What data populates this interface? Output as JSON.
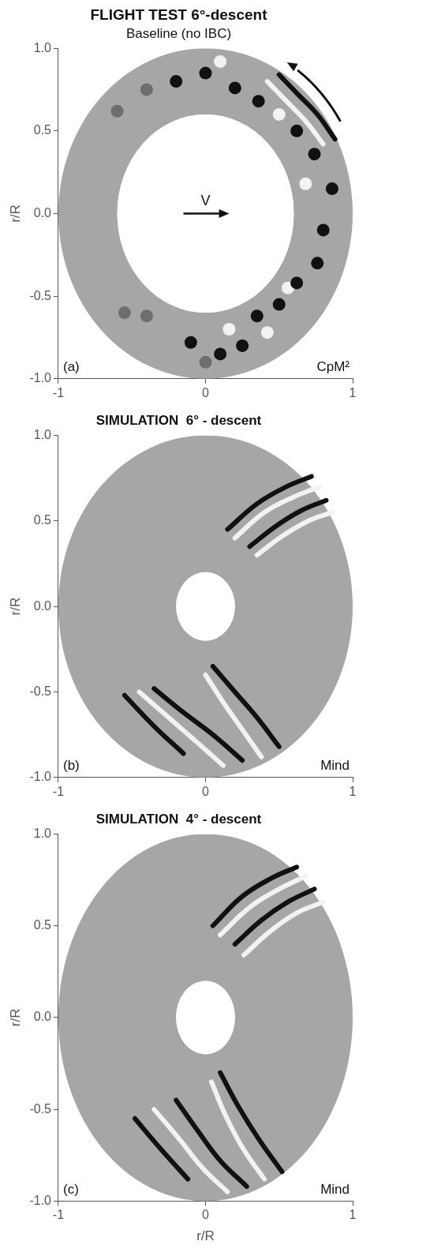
{
  "chart_data": [
    {
      "type": "scatter",
      "title": "FLIGHT TEST 6°-descent",
      "subtitle": "Baseline (no IBC)",
      "panel_label": "(a)",
      "quantity": "CpM²",
      "annotations": [
        "V"
      ],
      "y_label": "r/R",
      "xlim": [
        -1,
        1
      ],
      "ylim": [
        -1,
        1
      ],
      "xticks": [
        -1,
        0,
        1
      ],
      "yticks": [
        {
          "value": -1,
          "label": "-1.0"
        },
        {
          "value": -0.5,
          "label": "-0.5"
        },
        {
          "value": 0,
          "label": "0.0"
        },
        {
          "value": 0.5,
          "label": "0.5"
        },
        {
          "value": 1,
          "label": "1.0"
        }
      ],
      "grid": false,
      "disk": {
        "inner_radius": 0.6,
        "outer_radius": 1.0,
        "color": "#a6a6a6"
      },
      "series": [
        {
          "type": "scatter",
          "marker": "circle",
          "color": "#111111",
          "values": [
            [
              0.1,
              -0.85
            ],
            [
              0.25,
              -0.8
            ],
            [
              0.35,
              -0.62
            ],
            [
              0.5,
              -0.55
            ],
            [
              -0.1,
              -0.78
            ],
            [
              0.62,
              -0.42
            ],
            [
              0.76,
              -0.3
            ],
            [
              0.0,
              0.85
            ],
            [
              -0.2,
              0.8
            ],
            [
              0.2,
              0.76
            ],
            [
              0.36,
              0.68
            ],
            [
              0.62,
              0.5
            ],
            [
              0.74,
              0.36
            ],
            [
              0.86,
              0.15
            ],
            [
              0.8,
              -0.1
            ]
          ]
        },
        {
          "type": "scatter",
          "marker": "circle",
          "color": "#6e6e6e",
          "values": [
            [
              -0.4,
              -0.62
            ],
            [
              -0.55,
              -0.6
            ],
            [
              -0.4,
              0.75
            ],
            [
              -0.6,
              0.62
            ],
            [
              0.0,
              -0.9
            ]
          ]
        },
        {
          "type": "scatter",
          "marker": "circle",
          "color": "#f2f2f2",
          "values": [
            [
              0.16,
              -0.7
            ],
            [
              0.42,
              -0.72
            ],
            [
              0.56,
              -0.45
            ],
            [
              0.1,
              0.92
            ],
            [
              0.68,
              0.18
            ],
            [
              0.5,
              0.6
            ]
          ]
        },
        {
          "type": "line",
          "color": "#f2f2f2",
          "values": [
            [
              0.42,
              0.8
            ],
            [
              0.55,
              0.68
            ],
            [
              0.68,
              0.56
            ],
            [
              0.8,
              0.42
            ]
          ]
        },
        {
          "type": "line",
          "color": "#111111",
          "values": [
            [
              0.5,
              0.84
            ],
            [
              0.63,
              0.72
            ],
            [
              0.76,
              0.6
            ],
            [
              0.88,
              0.45
            ]
          ]
        }
      ]
    },
    {
      "type": "scatter",
      "title": "SIMULATION  6° - descent",
      "panel_label": "(b)",
      "quantity": "Mind",
      "y_label": "r/R",
      "xlim": [
        -1,
        1
      ],
      "ylim": [
        -1,
        1
      ],
      "xticks": [
        -1,
        0,
        1
      ],
      "yticks": [
        {
          "value": -1,
          "label": "-1.0"
        },
        {
          "value": -0.5,
          "label": "-0.5"
        },
        {
          "value": 0,
          "label": "0.0"
        },
        {
          "value": 0.5,
          "label": "0.5"
        },
        {
          "value": 1,
          "label": "1.0"
        }
      ],
      "grid": false,
      "disk": {
        "inner_radius": 0.2,
        "outer_radius": 1.0,
        "color": "#a6a6a6"
      },
      "series": [
        {
          "type": "line",
          "color": "#111111",
          "values": [
            [
              0.15,
              0.45
            ],
            [
              0.35,
              0.6
            ],
            [
              0.55,
              0.7
            ],
            [
              0.72,
              0.76
            ]
          ]
        },
        {
          "type": "line",
          "color": "#f2f2f2",
          "values": [
            [
              0.2,
              0.4
            ],
            [
              0.4,
              0.55
            ],
            [
              0.6,
              0.64
            ],
            [
              0.78,
              0.7
            ]
          ]
        },
        {
          "type": "line",
          "color": "#111111",
          "values": [
            [
              0.3,
              0.35
            ],
            [
              0.48,
              0.47
            ],
            [
              0.65,
              0.56
            ],
            [
              0.82,
              0.62
            ]
          ]
        },
        {
          "type": "line",
          "color": "#f2f2f2",
          "values": [
            [
              0.35,
              0.3
            ],
            [
              0.52,
              0.41
            ],
            [
              0.7,
              0.5
            ],
            [
              0.86,
              0.55
            ]
          ]
        },
        {
          "type": "line",
          "color": "#111111",
          "values": [
            [
              0.05,
              -0.35
            ],
            [
              0.2,
              -0.5
            ],
            [
              0.35,
              -0.65
            ],
            [
              0.5,
              -0.82
            ]
          ]
        },
        {
          "type": "line",
          "color": "#f2f2f2",
          "values": [
            [
              0.0,
              -0.4
            ],
            [
              0.12,
              -0.56
            ],
            [
              0.25,
              -0.72
            ],
            [
              0.38,
              -0.88
            ]
          ]
        },
        {
          "type": "line",
          "color": "#111111",
          "values": [
            [
              -0.35,
              -0.48
            ],
            [
              -0.15,
              -0.62
            ],
            [
              0.05,
              -0.75
            ],
            [
              0.25,
              -0.9
            ]
          ]
        },
        {
          "type": "line",
          "color": "#f2f2f2",
          "values": [
            [
              -0.45,
              -0.5
            ],
            [
              -0.25,
              -0.65
            ],
            [
              -0.05,
              -0.8
            ],
            [
              0.12,
              -0.93
            ]
          ]
        },
        {
          "type": "line",
          "color": "#111111",
          "values": [
            [
              -0.55,
              -0.52
            ],
            [
              -0.35,
              -0.7
            ],
            [
              -0.15,
              -0.86
            ]
          ]
        }
      ]
    },
    {
      "type": "scatter",
      "title": "SIMULATION  4° - descent",
      "panel_label": "(c)",
      "quantity": "Mind",
      "y_label": "r/R",
      "x_label": "r/R",
      "xlim": [
        -1,
        1
      ],
      "ylim": [
        -1,
        1
      ],
      "xticks": [
        -1,
        0,
        1
      ],
      "yticks": [
        {
          "value": -1,
          "label": "-1.0"
        },
        {
          "value": -0.5,
          "label": "-0.5"
        },
        {
          "value": 0,
          "label": "0.0"
        },
        {
          "value": 0.5,
          "label": "0.5"
        },
        {
          "value": 1,
          "label": "1.0"
        }
      ],
      "grid": false,
      "disk": {
        "inner_radius": 0.2,
        "outer_radius": 1.0,
        "color": "#a6a6a6"
      },
      "series": [
        {
          "type": "line",
          "color": "#111111",
          "values": [
            [
              0.05,
              0.5
            ],
            [
              0.25,
              0.66
            ],
            [
              0.45,
              0.76
            ],
            [
              0.62,
              0.82
            ]
          ]
        },
        {
          "type": "line",
          "color": "#f2f2f2",
          "values": [
            [
              0.1,
              0.45
            ],
            [
              0.3,
              0.6
            ],
            [
              0.5,
              0.7
            ],
            [
              0.68,
              0.77
            ]
          ]
        },
        {
          "type": "line",
          "color": "#111111",
          "values": [
            [
              0.2,
              0.4
            ],
            [
              0.38,
              0.53
            ],
            [
              0.56,
              0.63
            ],
            [
              0.74,
              0.7
            ]
          ]
        },
        {
          "type": "line",
          "color": "#f2f2f2",
          "values": [
            [
              0.26,
              0.34
            ],
            [
              0.44,
              0.47
            ],
            [
              0.62,
              0.57
            ],
            [
              0.8,
              0.63
            ]
          ]
        },
        {
          "type": "line",
          "color": "#111111",
          "values": [
            [
              0.1,
              -0.3
            ],
            [
              0.22,
              -0.48
            ],
            [
              0.36,
              -0.66
            ],
            [
              0.52,
              -0.84
            ]
          ]
        },
        {
          "type": "line",
          "color": "#f2f2f2",
          "values": [
            [
              0.04,
              -0.35
            ],
            [
              0.14,
              -0.54
            ],
            [
              0.26,
              -0.72
            ],
            [
              0.4,
              -0.88
            ]
          ]
        },
        {
          "type": "line",
          "color": "#111111",
          "values": [
            [
              -0.2,
              -0.45
            ],
            [
              -0.05,
              -0.62
            ],
            [
              0.1,
              -0.78
            ],
            [
              0.28,
              -0.92
            ]
          ]
        },
        {
          "type": "line",
          "color": "#f2f2f2",
          "values": [
            [
              -0.35,
              -0.5
            ],
            [
              -0.18,
              -0.66
            ],
            [
              -0.02,
              -0.82
            ],
            [
              0.15,
              -0.95
            ]
          ]
        },
        {
          "type": "line",
          "color": "#111111",
          "values": [
            [
              -0.48,
              -0.55
            ],
            [
              -0.3,
              -0.72
            ],
            [
              -0.12,
              -0.88
            ]
          ]
        }
      ]
    }
  ]
}
